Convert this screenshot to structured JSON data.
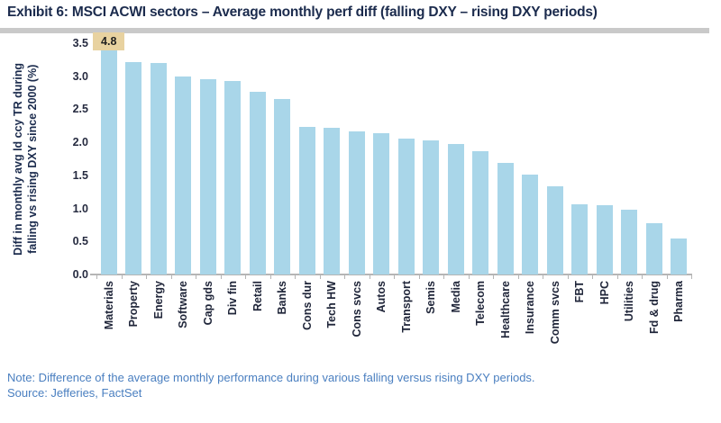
{
  "header": {
    "title": "Exhibit 6: MSCI ACWI sectors – Average monthly perf diff (falling DXY – rising DXY periods)"
  },
  "chart_data": {
    "type": "bar",
    "title": "Exhibit 6: MSCI ACWI sectors – Average monthly perf diff (falling DXY – rising DXY periods)",
    "ylabel": "Diff in monthly avg ld ccy TR during\nfalling vs rising DXY since 2000 (%)",
    "xlabel": "",
    "ylim": [
      0,
      3.5
    ],
    "clip_max": 3.5,
    "ytick_labels": [
      "3.5",
      "3.0",
      "2.5",
      "2.0",
      "1.5",
      "1.0",
      "0.5",
      "0.0"
    ],
    "grid": false,
    "legend": "none",
    "bar_color": "#a9d6e9",
    "categories": [
      "Materials",
      "Property",
      "Energy",
      "Software",
      "Cap gds",
      "Div fin",
      "Retail",
      "Banks",
      "Cons dur",
      "Tech HW",
      "Cons svcs",
      "Autos",
      "Transport",
      "Semis",
      "Media",
      "Telecom",
      "Healthcare",
      "Insurance",
      "Comm svcs",
      "FBT",
      "HPC",
      "Utilities",
      "Fd & drug",
      "Pharma"
    ],
    "values": [
      4.8,
      3.22,
      3.2,
      3.0,
      2.95,
      2.93,
      2.77,
      2.65,
      2.24,
      2.22,
      2.16,
      2.14,
      2.06,
      2.03,
      1.98,
      1.87,
      1.69,
      1.51,
      1.33,
      1.06,
      1.05,
      0.98,
      0.78,
      0.55
    ],
    "annotations": [
      {
        "category": "Materials",
        "label": "4.8",
        "note": "bar exceeds axis max, value shown in tan label box"
      }
    ]
  },
  "footer": {
    "note": "Note: Difference of the average monthly performance during various falling versus rising DXY periods.",
    "source": "Source: Jefferies, FactSet"
  },
  "colors": {
    "bar": "#a9d6e9",
    "annotation_bg": "#e8d2a0",
    "title_text": "#1b2b4d",
    "note_text": "#4a7fc0",
    "rule": "#c9c9c9",
    "axis_line": "#b5b5b5",
    "tick_label": "#262b40"
  }
}
